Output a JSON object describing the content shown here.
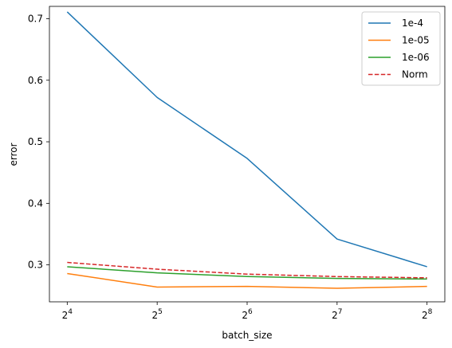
{
  "chart_data": {
    "type": "line",
    "xlabel": "batch_size",
    "ylabel": "error",
    "x": [
      16,
      32,
      64,
      128,
      256
    ],
    "x_scale": "log2",
    "x_tick_labels": [
      {
        "base": "2",
        "exp": "4"
      },
      {
        "base": "2",
        "exp": "5"
      },
      {
        "base": "2",
        "exp": "6"
      },
      {
        "base": "2",
        "exp": "7"
      },
      {
        "base": "2",
        "exp": "8"
      }
    ],
    "ylim": [
      0.24,
      0.72
    ],
    "y_ticks": [
      "0.3",
      "0.4",
      "0.5",
      "0.6",
      "0.7"
    ],
    "grid": false,
    "legend_position": "top-right",
    "series": [
      {
        "name": "1e-4",
        "color": "#1f77b4",
        "style": "solid",
        "values": [
          0.711,
          0.572,
          0.473,
          0.342,
          0.297
        ]
      },
      {
        "name": "1e-05",
        "color": "#ff7f0e",
        "style": "solid",
        "values": [
          0.286,
          0.264,
          0.265,
          0.262,
          0.265
        ]
      },
      {
        "name": "1e-06",
        "color": "#2ca02c",
        "style": "solid",
        "values": [
          0.297,
          0.287,
          0.281,
          0.278,
          0.277
        ]
      },
      {
        "name": "Norm",
        "color": "#d62728",
        "style": "dashed",
        "values": [
          0.304,
          0.293,
          0.285,
          0.281,
          0.279
        ]
      }
    ]
  }
}
